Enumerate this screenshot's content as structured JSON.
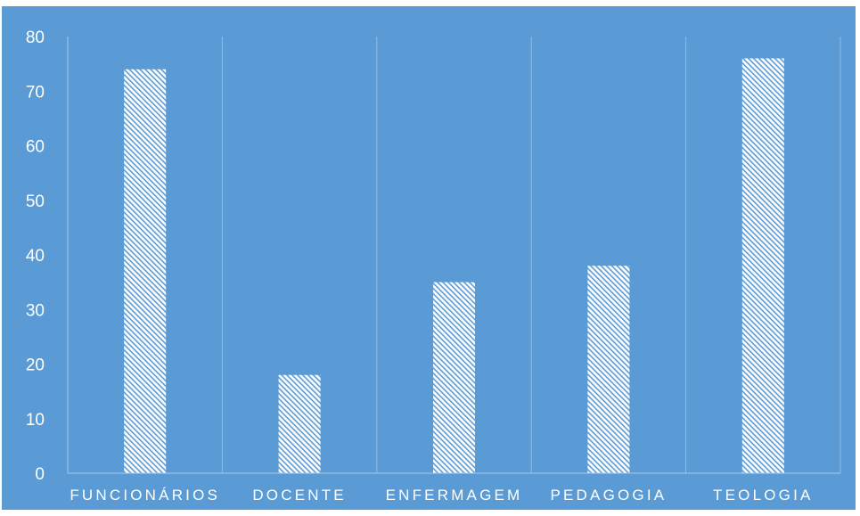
{
  "chart_data": {
    "type": "bar",
    "categories": [
      "FUNCIONÁRIOS",
      "DOCENTE",
      "ENFERMAGEM",
      "PEDAGOGIA",
      "TEOLOGIA"
    ],
    "values": [
      74,
      18,
      35,
      38,
      76
    ],
    "title": "",
    "xlabel": "",
    "ylabel": "",
    "ylim": [
      0,
      80
    ],
    "yticks": [
      0,
      10,
      20,
      30,
      40,
      50,
      60,
      70,
      80
    ],
    "grid": "vertical category separators",
    "legend": "none",
    "colors": {
      "background": "#5b9bd5",
      "bar_fill": "#ffffff",
      "bar_hatch": "#5b9bd5",
      "grid": "#8fbbe4",
      "axis": "#a9cbeb",
      "text": "#ffffff"
    }
  }
}
